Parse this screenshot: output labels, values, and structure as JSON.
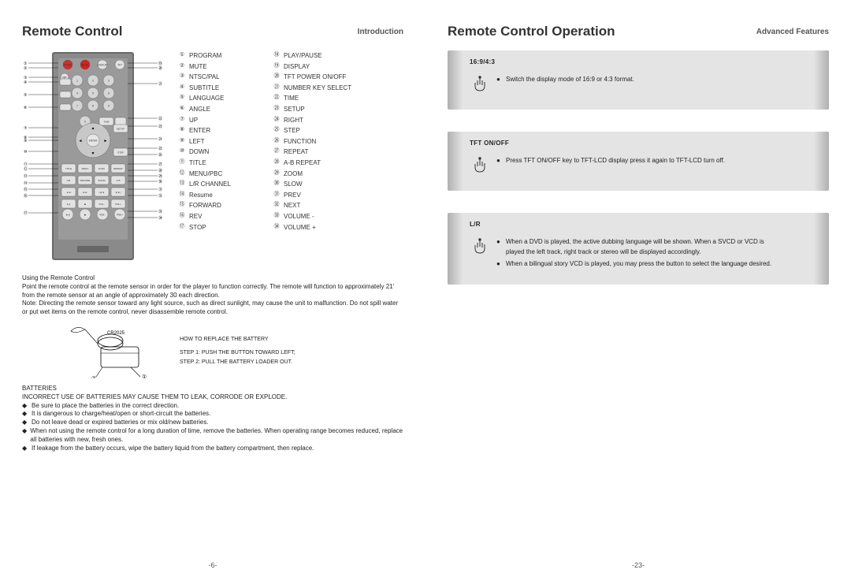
{
  "colors": {
    "bg": "#ffffff",
    "text": "#222",
    "panel": "#e4e4e4",
    "panelEdge": "#b0b0b0",
    "red": "#d81f1f",
    "remoteOuter": "#6b6b6b",
    "remoteInner": "#8a8a8a",
    "btn": "#e2e2e2",
    "btnDark": "#b8b8b8",
    "accent": "#555"
  },
  "left": {
    "title": "Remote Control",
    "tab": "Introduction",
    "pageNum": "-6-",
    "callouts": {
      "col1": [
        {
          "n": "①",
          "t": "PROGRAM"
        },
        {
          "n": "②",
          "t": "MUTE"
        },
        {
          "n": "③",
          "t": "NTSC/PAL"
        },
        {
          "n": "④",
          "t": "SUBTITLE"
        },
        {
          "n": "⑤",
          "t": "LANGUAGE"
        },
        {
          "n": "⑥",
          "t": "ANGLE"
        },
        {
          "n": "⑦",
          "t": "UP"
        },
        {
          "n": "⑧",
          "t": "ENTER"
        },
        {
          "n": "⑨",
          "t": "LEFT"
        },
        {
          "n": "⑩",
          "t": "DOWN"
        },
        {
          "n": "⑪",
          "t": "TITLE"
        },
        {
          "n": "⑫",
          "t": "MENU/PBC"
        },
        {
          "n": "⑬",
          "t": "L/R CHANNEL"
        },
        {
          "n": "⑭",
          "t": "Resume"
        },
        {
          "n": "⑮",
          "t": "FORWARD"
        },
        {
          "n": "⑯",
          "t": "REV"
        },
        {
          "n": "⑰",
          "t": "STOP"
        }
      ],
      "col2": [
        {
          "n": "⑱",
          "t": "PLAY/PAUSE"
        },
        {
          "n": "⑲",
          "t": "DISPLAY"
        },
        {
          "n": "⑳",
          "t": "TFT POWER ON/OFF"
        },
        {
          "n": "㉑",
          "t": "NUMBER KEY SELECT"
        },
        {
          "n": "㉒",
          "t": "TIME"
        },
        {
          "n": "㉓",
          "t": "SETUP"
        },
        {
          "n": "㉔",
          "t": "RIGHT"
        },
        {
          "n": "㉕",
          "t": "STEP"
        },
        {
          "n": "㉖",
          "t": "FUNCTION"
        },
        {
          "n": "㉗",
          "t": "REPEAT"
        },
        {
          "n": "㉘",
          "t": "A-B REPEAT"
        },
        {
          "n": "㉙",
          "t": "ZOOM"
        },
        {
          "n": "㉚",
          "t": "SLOW"
        },
        {
          "n": "㉛",
          "t": "PREV"
        },
        {
          "n": "㉜",
          "t": "NEXT"
        },
        {
          "n": "㉝",
          "t": "VOLUME -"
        },
        {
          "n": "㉞",
          "t": "VOLUME +"
        }
      ]
    },
    "usageTitle": "Using the Remote Control",
    "usageBody": "Point the remote control at the remote sensor in order for the player to function correctly. The remote will function to approximately 21' from the remote sensor at an angle of approximately 30 each direction.",
    "usageNote": "Note: Directing the remote sensor toward any light source, such as direct sunlight, may cause the unit to malfunction. Do not spill water or put wet items on the remote control, never disassemble remote control.",
    "battReplaceTitle": "HOW TO REPLACE THE BATTERY",
    "battStep1": "STEP 1: PUSH THE BUTTON TOWARD LEFT;",
    "battStep2": "STEP 2: PULL THE BATTERY LOADER OUT.",
    "battLabel": "CR2025",
    "battTitle": "BATTERIES",
    "battWarn": "INCORRECT USE OF BATTERIES MAY CAUSE THEM TO LEAK, CORRODE OR EXPLODE.",
    "battBullets": [
      "Be sure to place the batteries in the correct direction.",
      "It is dangerous to charge/heat/open or short-circuit the batteries.",
      "Do not leave dead or expired batteries or mix old/new batteries.",
      "When not using the remote control for a long duration of time, remove the batteries. When operating range becomes reduced, replace all batteries with new, fresh ones.",
      "If leakage from the battery occurs, wipe the battery liquid from the battery compartment, then replace."
    ]
  },
  "right": {
    "title": "Remote Control Operation",
    "tab": "Advanced Features",
    "pageNum": "-23-",
    "sections": [
      {
        "title": "16:9/4:3",
        "items": [
          {
            "bullets": [
              "Switch the display mode of 16:9 or 4:3 format."
            ]
          }
        ]
      },
      {
        "title": "TFT ON/OFF",
        "items": [
          {
            "bullets": [
              "Press TFT ON/OFF key to TFT-LCD display press it again to TFT-LCD turn off."
            ]
          }
        ]
      },
      {
        "title": "L/R",
        "items": [
          {
            "bullets": [
              "When  a  DVD  is played, the active dubbing language  will be shown. When a SVCD or VCD is played  the  left track, right track or stereo will be displayed accordingly.",
              "When  a  bilingual  story  VCD is played, you may  press  the button  to  select  the  language desired."
            ]
          }
        ]
      }
    ]
  },
  "remote": {
    "outerW": 100,
    "outerH": 260,
    "buttons": {
      "row1": [
        "PROG",
        "MUTE",
        "DISPLAY",
        "TFT"
      ],
      "row2": [
        "1",
        "2",
        "3"
      ],
      "row3": [
        "4",
        "5",
        "6"
      ],
      "row4": [
        "7",
        "8",
        "9"
      ],
      "row5": [
        "0",
        "TIME"
      ],
      "row6": [
        "▲"
      ],
      "row7": [
        "◄",
        "ENTER",
        "►"
      ],
      "row8": [
        "▼"
      ],
      "row9": [
        "TITLE",
        "MENU",
        "FUNC",
        "REPEAT"
      ],
      "row10": [
        "L/R",
        "RESUME",
        "ZOOM",
        "A-B"
      ],
      "row11": [
        "◄◄",
        "►►",
        "|◄◄",
        "►►|"
      ],
      "row12": [
        "►||",
        "■",
        "VOL-",
        "VOL+"
      ]
    }
  }
}
